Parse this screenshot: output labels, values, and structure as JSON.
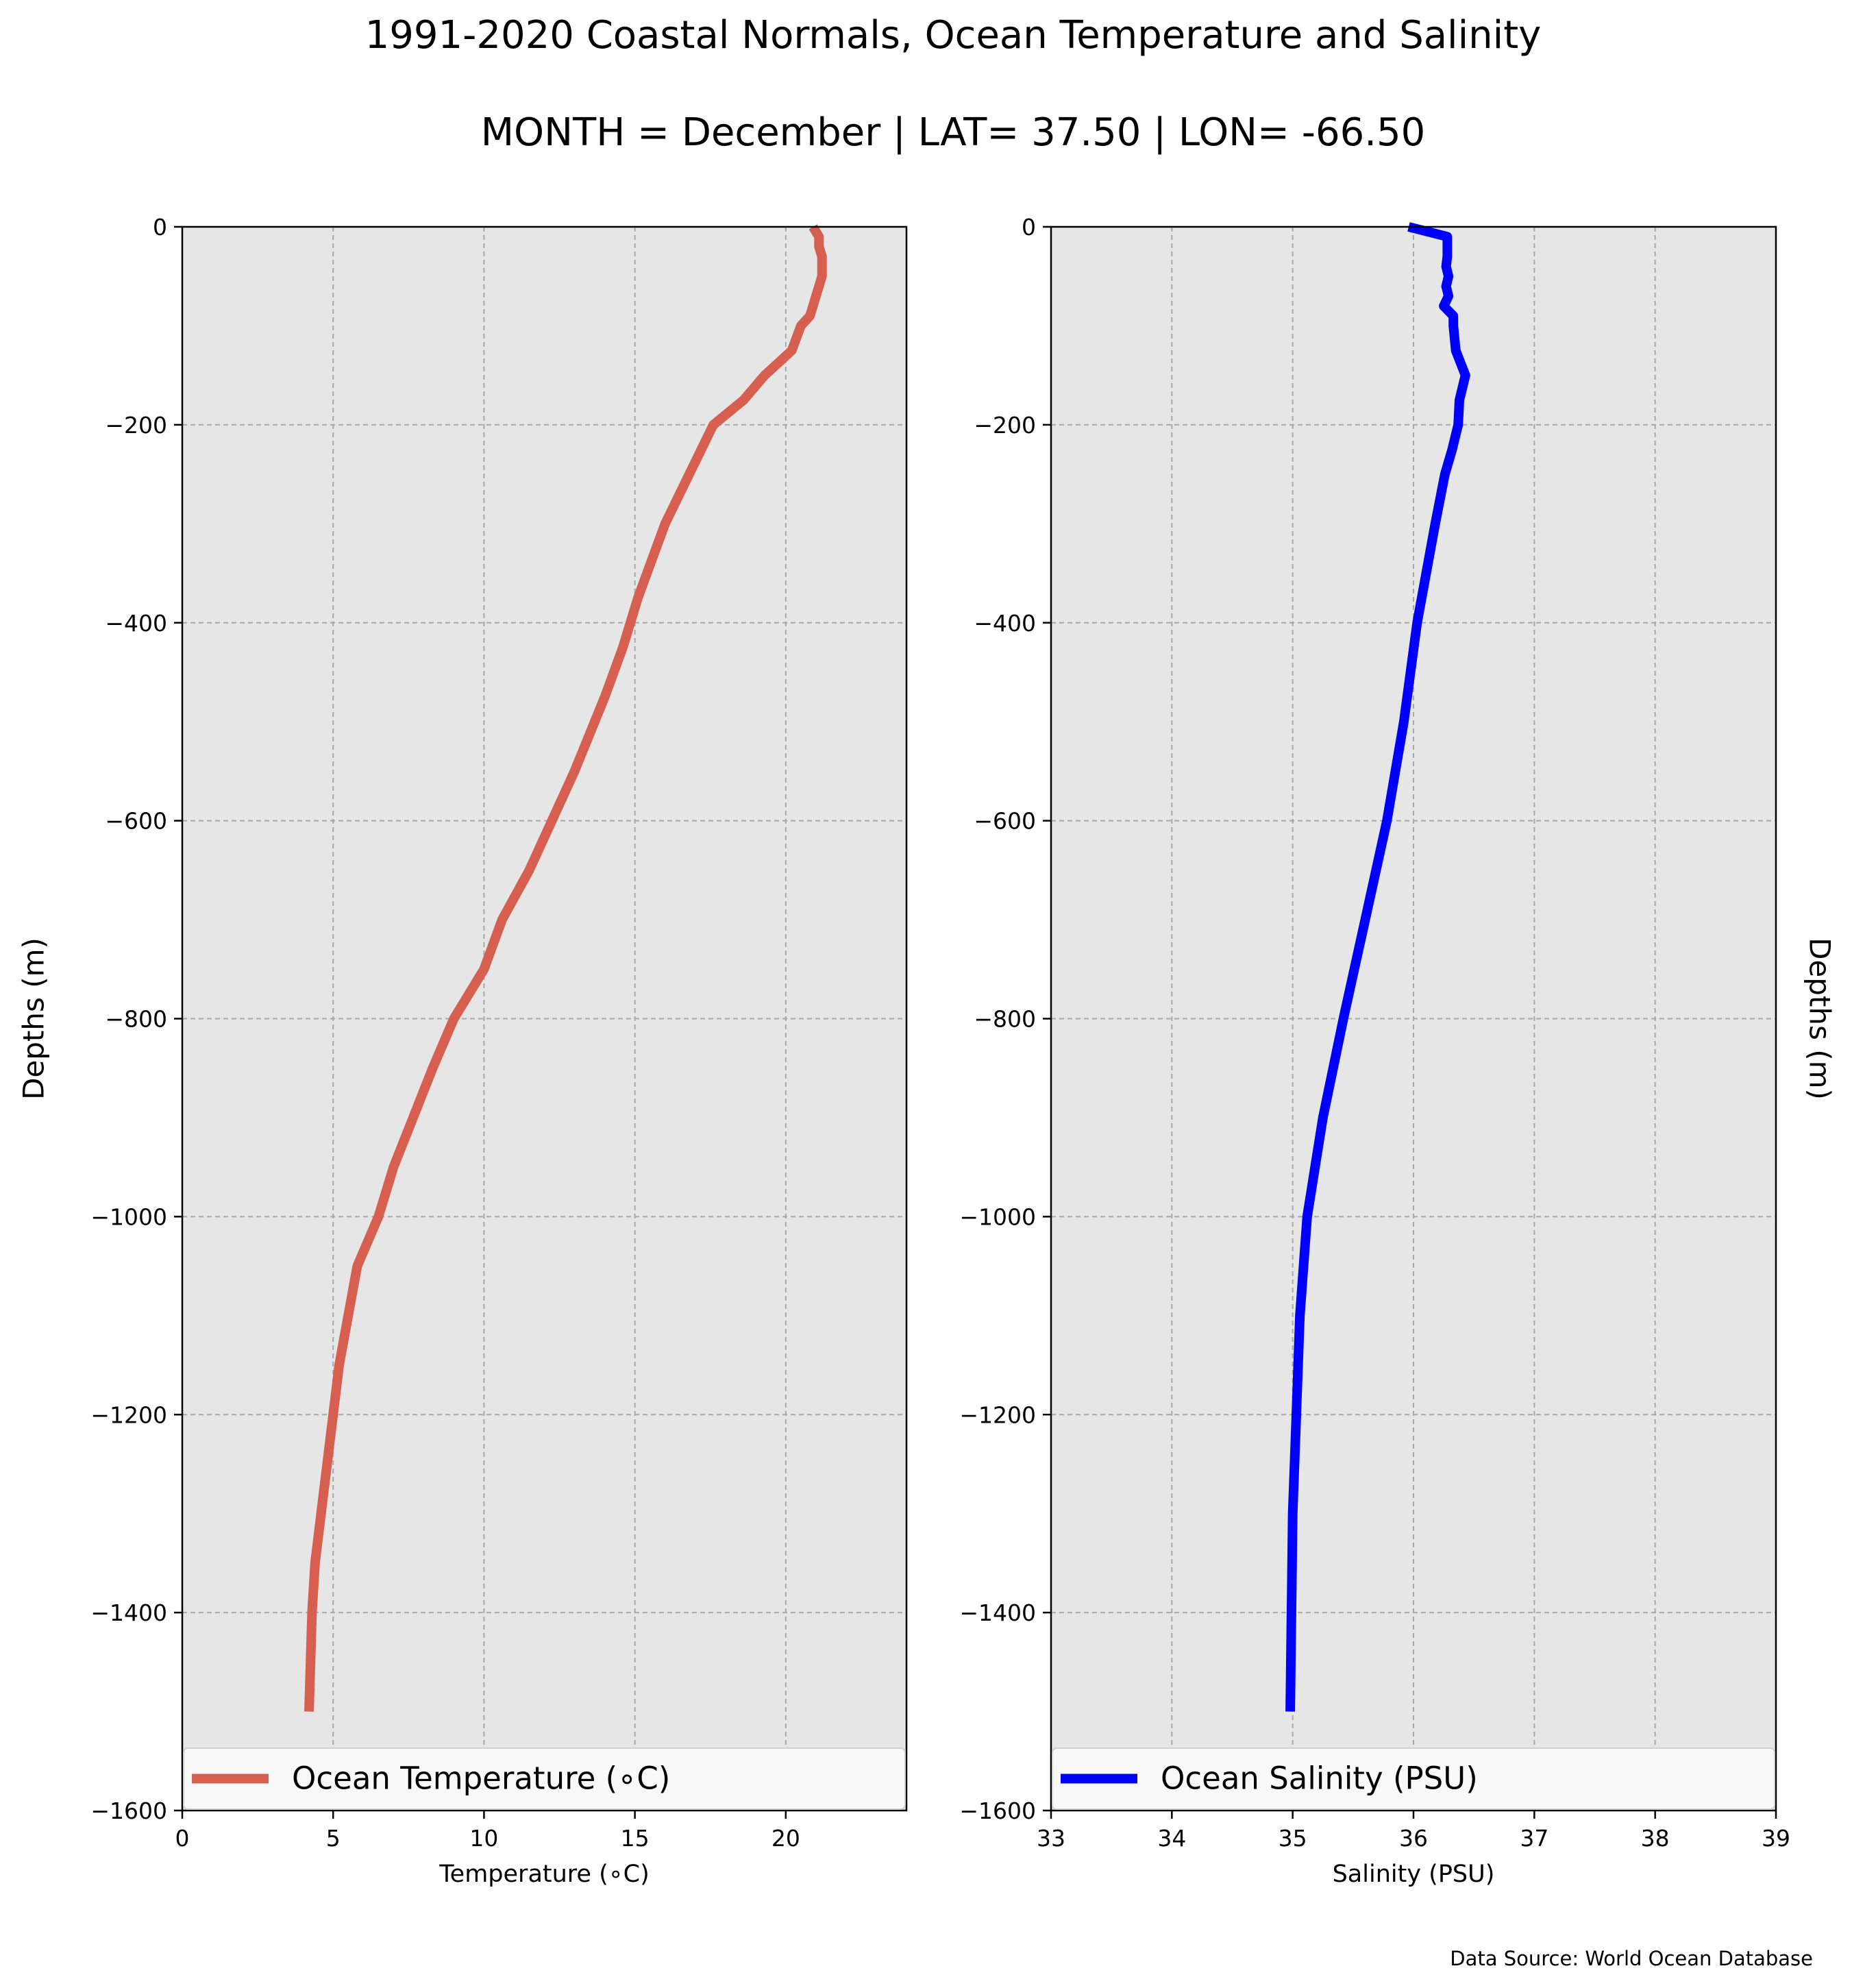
{
  "figure": {
    "title_line1": "1991-2020 Coastal Normals, Ocean Temperature and Salinity",
    "title_line2": "MONTH = December | LAT= 37.50 | LON= -66.50",
    "source_note": "Data Source: World Ocean Database",
    "background": "#ffffff",
    "plot_background": "#e6e6e6"
  },
  "chart_data": [
    {
      "type": "line",
      "xlabel": "Temperature (∘C)",
      "ylabel": "Depths (m)",
      "xlim": [
        0,
        24
      ],
      "ylim": [
        -1600,
        0
      ],
      "xticks": [
        0,
        5,
        10,
        15,
        20
      ],
      "yticks": [
        0,
        -200,
        -400,
        -600,
        -800,
        -1000,
        -1200,
        -1400,
        -1600
      ],
      "grid": true,
      "legend_position": "lower-center",
      "series": [
        {
          "name": "Ocean Temperature (∘C)",
          "color": "#d65f4f",
          "x": [
            20.9,
            21.1,
            21.1,
            21.2,
            21.2,
            21.2,
            21.1,
            21.0,
            20.9,
            20.8,
            20.5,
            20.2,
            19.3,
            18.6,
            17.6,
            16.8,
            16.0,
            15.4,
            15.1,
            14.6,
            14.0,
            13.0,
            11.5,
            10.6,
            10.0,
            9.0,
            8.3,
            7.0,
            6.5,
            5.8,
            5.5,
            5.2,
            5.0,
            4.8,
            4.6,
            4.4,
            4.3,
            4.2
          ],
          "y": [
            0,
            -10,
            -20,
            -30,
            -40,
            -50,
            -60,
            -70,
            -80,
            -90,
            -100,
            -125,
            -150,
            -175,
            -200,
            -250,
            -300,
            -350,
            -375,
            -425,
            -475,
            -550,
            -650,
            -700,
            -750,
            -800,
            -850,
            -950,
            -1000,
            -1050,
            -1100,
            -1150,
            -1200,
            -1250,
            -1300,
            -1350,
            -1400,
            -1500
          ]
        }
      ]
    },
    {
      "type": "line",
      "xlabel": "Salinity (PSU)",
      "ylabel": "Depths (m)",
      "xlim": [
        33,
        39
      ],
      "ylim": [
        -1600,
        0
      ],
      "xticks": [
        33,
        34,
        35,
        36,
        37,
        38,
        39
      ],
      "yticks": [
        0,
        -200,
        -400,
        -600,
        -800,
        -1000,
        -1200,
        -1400,
        -1600
      ],
      "grid": true,
      "legend_position": "lower-center",
      "series": [
        {
          "name": "Ocean Salinity (PSU)",
          "color": "#0000ff",
          "x": [
            35.96,
            36.28,
            36.28,
            36.28,
            36.27,
            36.29,
            36.27,
            36.29,
            36.25,
            36.33,
            36.33,
            36.35,
            36.43,
            36.38,
            36.37,
            36.32,
            36.26,
            36.18,
            36.03,
            35.92,
            35.78,
            35.6,
            35.42,
            35.25,
            35.12,
            35.06,
            35.03,
            35.0,
            34.98
          ],
          "y": [
            0,
            -10,
            -20,
            -30,
            -40,
            -50,
            -60,
            -70,
            -80,
            -90,
            -100,
            -125,
            -150,
            -175,
            -200,
            -225,
            -250,
            -300,
            -400,
            -500,
            -600,
            -700,
            -800,
            -900,
            -1000,
            -1100,
            -1200,
            -1300,
            -1500
          ]
        }
      ]
    }
  ]
}
